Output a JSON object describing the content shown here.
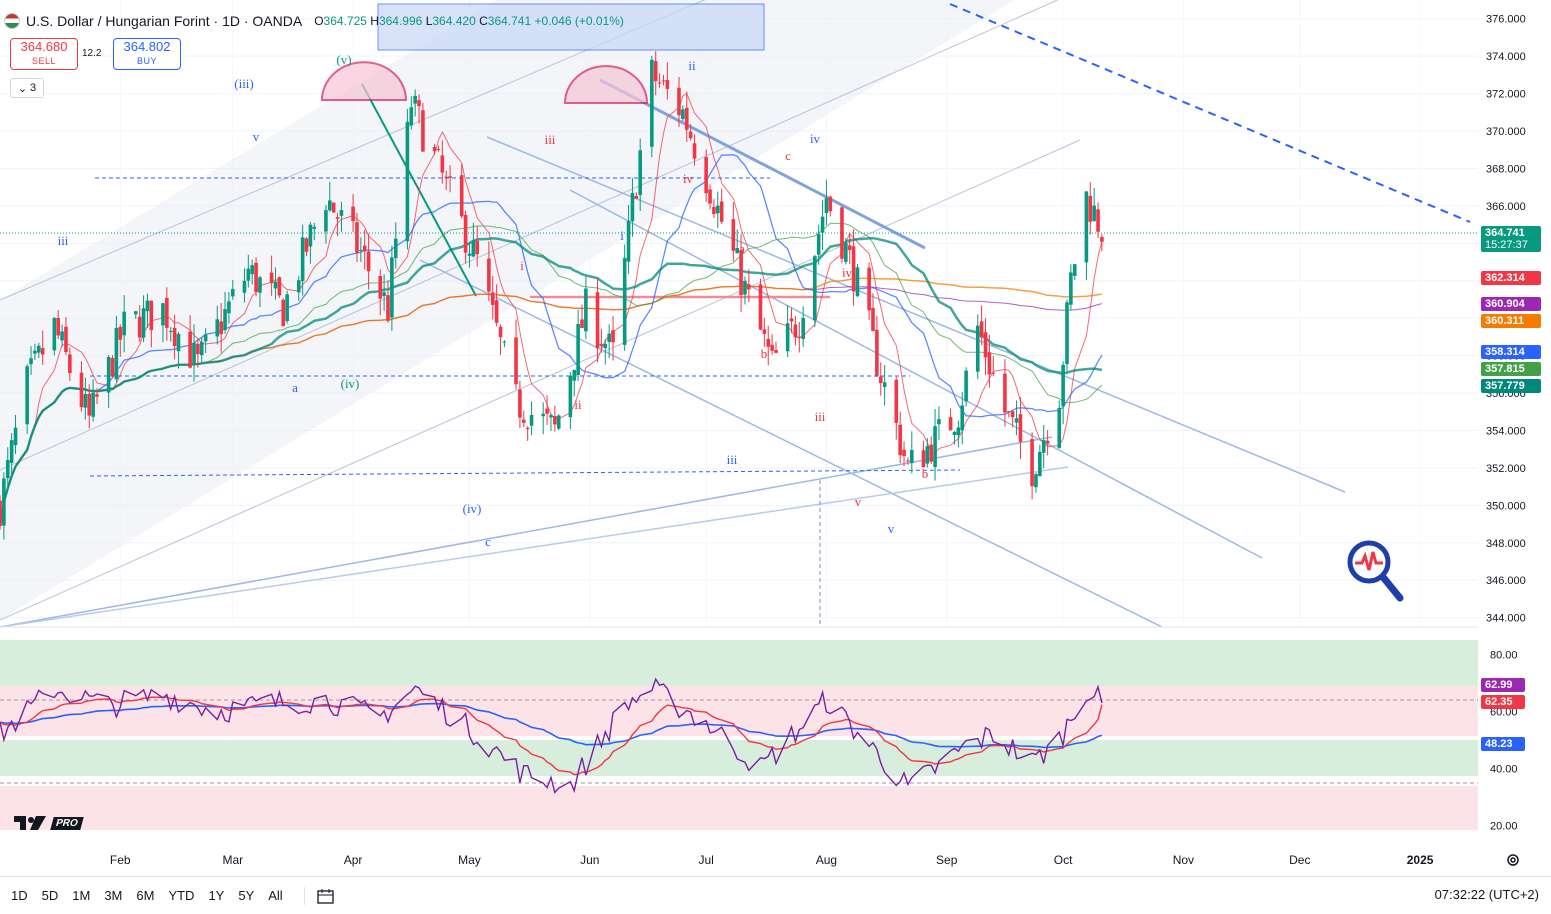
{
  "header": {
    "title": "U.S. Dollar / Hungarian Forint · 1D · OANDA",
    "open_label": "O",
    "open": "364.725",
    "high_label": "H",
    "high": "364.996",
    "low_label": "L",
    "low": "364.420",
    "close_label": "C",
    "close": "364.741",
    "change": "+0.046 (+0.01%)"
  },
  "trade": {
    "sell_price": "364.680",
    "sell_label": "SELL",
    "buy_price": "364.802",
    "buy_label": "BUY",
    "spread": "12.2"
  },
  "indicators_collapsed_count": "3",
  "price_badges": [
    {
      "value": "364.741",
      "sub": "15:27:37",
      "color": "#089981"
    },
    {
      "value": "362.314",
      "color": "#f23645"
    },
    {
      "value": "360.904",
      "color": "#9c27b0"
    },
    {
      "value": "360.311",
      "color": "#f57c00"
    },
    {
      "value": "358.314",
      "color": "#2962ff"
    },
    {
      "value": "357.815",
      "color": "#43a047"
    },
    {
      "value": "357.779",
      "color": "#00897b"
    }
  ],
  "rsi_badges": [
    {
      "value": "62.99",
      "color": "#9c27b0"
    },
    {
      "value": "62.35",
      "color": "#f23645"
    },
    {
      "value": "48.23",
      "color": "#2962ff"
    }
  ],
  "bottom_bar": {
    "timeframes": [
      "1D",
      "5D",
      "1M",
      "3M",
      "6M",
      "YTD",
      "1Y",
      "5Y",
      "All"
    ],
    "clock": "07:32:22 (UTC+2)"
  },
  "colors": {
    "up": "#089981",
    "down": "#f23645",
    "channel": "#90aee0",
    "accent": "#2962ff"
  },
  "chart_data": {
    "type": "candlestick",
    "title": "U.S. Dollar / Hungarian Forint · 1D · OANDA",
    "ylim": [
      343.5,
      377
    ],
    "y_ticks": [
      344,
      346,
      348,
      350,
      352,
      354,
      356,
      358,
      360,
      362,
      364,
      366,
      368,
      370,
      372,
      374,
      376
    ],
    "y_tick_labels": [
      "344.000",
      "346.000",
      "348.000",
      "350.000",
      "352.000",
      "354.000",
      "356.000",
      "358.000",
      "360.000",
      "362.000",
      "364.000",
      "366.000",
      "368.000",
      "370.000",
      "372.000",
      "374.000",
      "376.000"
    ],
    "x_ticks": [
      "Feb",
      "Mar",
      "Apr",
      "May",
      "Jun",
      "Jul",
      "Aug",
      "Sep",
      "Oct",
      "Nov",
      "Dec",
      "2025"
    ],
    "close_path": [
      [
        "2024-01-01",
        350.0
      ],
      [
        "2024-01-08",
        356.5
      ],
      [
        "2024-01-15",
        359.5
      ],
      [
        "2024-01-24",
        354.5
      ],
      [
        "2024-02-02",
        359.5
      ],
      [
        "2024-02-12",
        360.5
      ],
      [
        "2024-02-21",
        357.5
      ],
      [
        "2024-03-05",
        362.5
      ],
      [
        "2024-03-14",
        360.5
      ],
      [
        "2024-03-25",
        366.5
      ],
      [
        "2024-04-03",
        363.5
      ],
      [
        "2024-04-10",
        360.5
      ],
      [
        "2024-04-16",
        371.5
      ],
      [
        "2024-04-24",
        367.5
      ],
      [
        "2024-05-03",
        363.0
      ],
      [
        "2024-05-13",
        355.5
      ],
      [
        "2024-05-23",
        354.0
      ],
      [
        "2024-05-31",
        360.5
      ],
      [
        "2024-06-07",
        358.0
      ],
      [
        "2024-06-12",
        366.0
      ],
      [
        "2024-06-17",
        373.0
      ],
      [
        "2024-06-25",
        371.0
      ],
      [
        "2024-07-02",
        367.0
      ],
      [
        "2024-07-11",
        361.5
      ],
      [
        "2024-07-18",
        357.5
      ],
      [
        "2024-07-25",
        360.0
      ],
      [
        "2024-08-01",
        366.5
      ],
      [
        "2024-08-08",
        362.5
      ],
      [
        "2024-08-15",
        357.0
      ],
      [
        "2024-08-22",
        352.0
      ],
      [
        "2024-08-29",
        353.5
      ],
      [
        "2024-09-04",
        355.0
      ],
      [
        "2024-09-09",
        359.5
      ],
      [
        "2024-09-16",
        355.0
      ],
      [
        "2024-09-23",
        352.0
      ],
      [
        "2024-09-30",
        356.0
      ],
      [
        "2024-10-03",
        362.0
      ],
      [
        "2024-10-07",
        366.5
      ],
      [
        "2024-10-11",
        364.74
      ]
    ],
    "moving_averages": [
      {
        "last": 362.314,
        "color": "#f23645"
      },
      {
        "last": 360.904,
        "color": "#9c27b0"
      },
      {
        "last": 360.311,
        "color": "#f57c00"
      },
      {
        "last": 358.314,
        "color": "#2962ff"
      },
      {
        "last": 357.815,
        "color": "#43a047"
      },
      {
        "last": 357.779,
        "color": "#00897b"
      }
    ],
    "rsi": {
      "ylim": [
        15,
        85
      ],
      "y_ticks": [
        20,
        40,
        60,
        80
      ],
      "y_tick_labels": [
        "20.00",
        "40.00",
        "60.00",
        "80.00"
      ],
      "last": [
        62.99,
        62.35,
        48.23
      ],
      "path": [
        [
          "2024-01-01",
          52
        ],
        [
          "2024-01-15",
          68
        ],
        [
          "2024-01-29",
          62
        ],
        [
          "2024-02-12",
          66
        ],
        [
          "2024-02-26",
          60
        ],
        [
          "2024-03-11",
          63
        ],
        [
          "2024-03-25",
          64
        ],
        [
          "2024-04-08",
          58
        ],
        [
          "2024-04-17",
          68
        ],
        [
          "2024-05-01",
          54
        ],
        [
          "2024-05-15",
          38
        ],
        [
          "2024-05-27",
          34
        ],
        [
          "2024-06-10",
          62
        ],
        [
          "2024-06-17",
          68
        ],
        [
          "2024-07-01",
          56
        ],
        [
          "2024-07-15",
          40
        ],
        [
          "2024-08-01",
          64
        ],
        [
          "2024-08-15",
          44
        ],
        [
          "2024-08-22",
          33
        ],
        [
          "2024-09-06",
          48
        ],
        [
          "2024-09-13",
          52
        ],
        [
          "2024-09-23",
          42
        ],
        [
          "2024-09-30",
          50
        ],
        [
          "2024-10-07",
          68
        ],
        [
          "2024-10-11",
          63
        ]
      ]
    },
    "wave_labels": [
      "(iii)",
      "(v)",
      "(iv)",
      "(iv)",
      "iii",
      "v",
      "ii",
      "iv",
      "iii",
      "i",
      "ii",
      "iii",
      "iv",
      "v",
      "a",
      "b",
      "c",
      "i",
      "ii",
      "iii",
      "iv",
      "v",
      "a",
      "b",
      "c"
    ]
  }
}
